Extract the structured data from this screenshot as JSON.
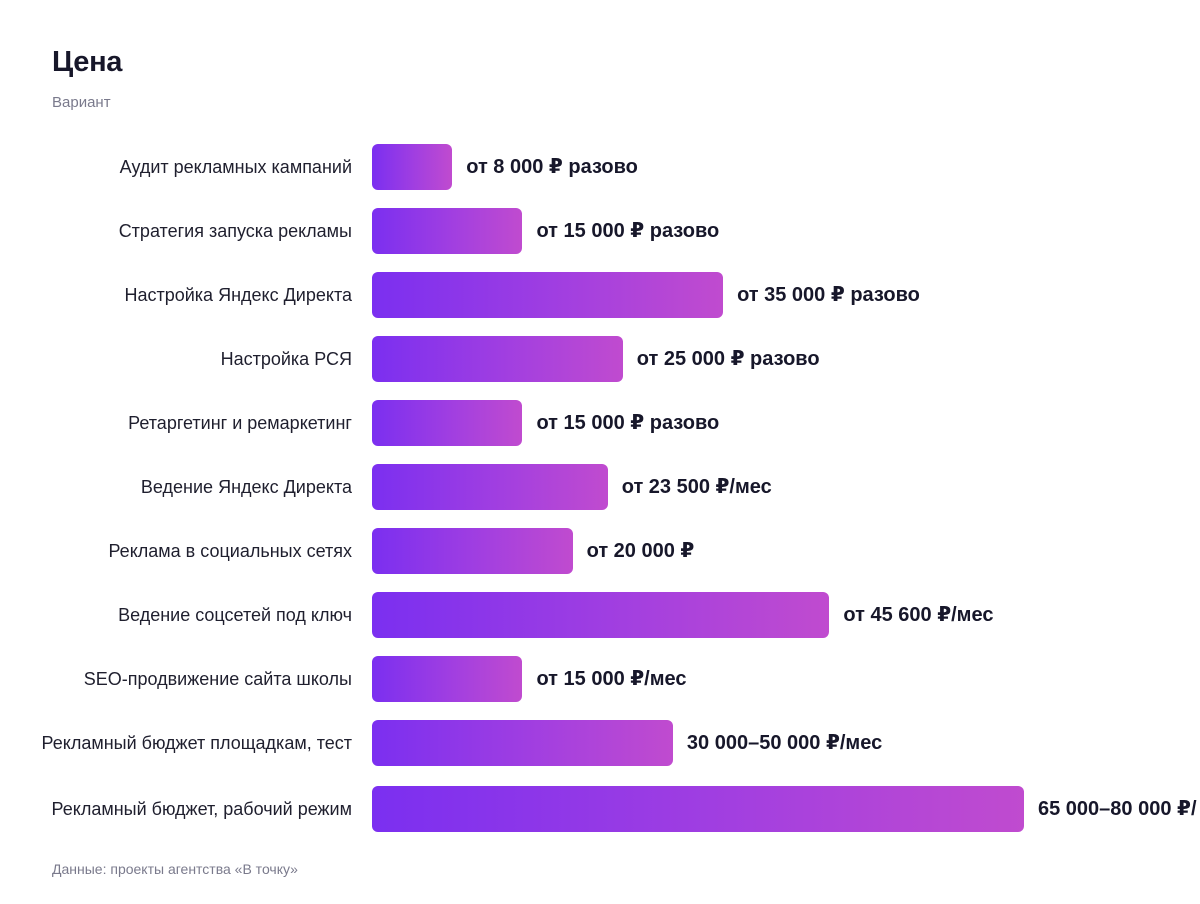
{
  "title": "Цена",
  "subtitle": "Вариант",
  "source": "Данные: проекты агентства «В точку»",
  "colors": {
    "bar_start": "#7b2ff0",
    "bar_end": "#c04bcf",
    "text": "#17172a",
    "muted": "#7a7a8c"
  },
  "chart_data": {
    "type": "bar",
    "orientation": "horizontal",
    "title": "Цена",
    "subtitle": "Вариант",
    "categories": [
      "Аудит рекламных кампаний",
      "Стратегия запуска рекламы",
      "Настройка Яндекс Директа",
      "Настройка РСЯ",
      "Ретаргетинг и ремаркетинг",
      "Ведение Яндекс Директа",
      "Реклама в социальных сетях",
      "Ведение соцсетей под ключ",
      "SEO-продвижение сайта школы",
      "Рекламный бюджет площадкам, тест",
      "Рекламный бюджет, рабочий режим"
    ],
    "values": [
      8000,
      15000,
      35000,
      25000,
      15000,
      23500,
      20000,
      45600,
      15000,
      30000,
      65000
    ],
    "value_labels": [
      "от 8 000 ₽ разово",
      "от 15 000 ₽ разово",
      "от 35 000 ₽ разово",
      "от 25 000 ₽ разово",
      "от 15 000 ₽ разово",
      "от 23 500 ₽/мес",
      "от 20 000 ₽",
      "от 45 600 ₽/мес",
      "от 15 000 ₽/мес",
      "30 000–50 000 ₽/мес",
      "65 000–80 000 ₽/"
    ],
    "xlim": [
      0,
      65000
    ],
    "grid": false,
    "legend": "none"
  }
}
